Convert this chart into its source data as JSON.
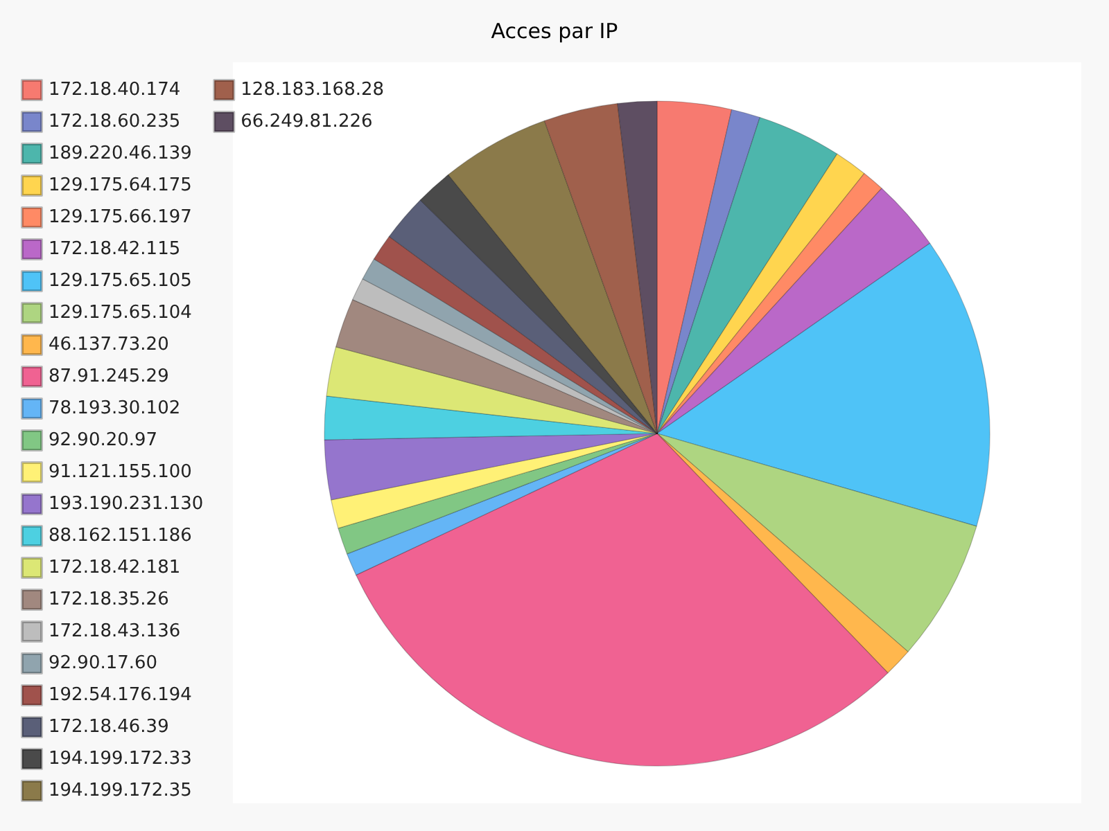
{
  "chart_data": {
    "type": "pie",
    "title": "Acces par IP",
    "categories": [
      "172.18.40.174",
      "172.18.60.235",
      "189.220.46.139",
      "129.175.64.175",
      "129.175.66.197",
      "172.18.42.115",
      "129.175.65.105",
      "129.175.65.104",
      "46.137.73.20",
      "87.91.245.29",
      "78.193.30.102",
      "92.90.20.97",
      "91.121.155.100",
      "193.190.231.130",
      "88.162.151.186",
      "172.18.42.181",
      "172.18.35.26",
      "172.18.43.136",
      "92.90.17.60",
      "192.54.176.194",
      "172.18.46.39",
      "194.199.172.33",
      "194.199.172.35",
      "128.183.168.28",
      "66.249.81.226"
    ],
    "values": [
      3.6,
      1.4,
      4.1,
      1.6,
      1.1,
      3.5,
      14.2,
      6.9,
      1.4,
      30.2,
      1.1,
      1.3,
      1.4,
      2.9,
      2.1,
      2.4,
      2.4,
      1.1,
      1.1,
      1.3,
      2.3,
      1.8,
      5.3,
      3.6,
      1.9
    ],
    "colors": [
      "#f77a70",
      "#7986cb",
      "#4db6ac",
      "#ffd54f",
      "#ff8a65",
      "#ba68c8",
      "#4fc3f7",
      "#aed581",
      "#ffb74d",
      "#f06292",
      "#64b5f6",
      "#81c784",
      "#fff176",
      "#9575cd",
      "#4dd0e1",
      "#dce775",
      "#a1887f",
      "#bdbdbd",
      "#90a4ae",
      "#a0524c",
      "#5a5f78",
      "#4a4a4a",
      "#8b7a4a",
      "#a0604c",
      "#5e4e62"
    ],
    "legend": "left"
  }
}
